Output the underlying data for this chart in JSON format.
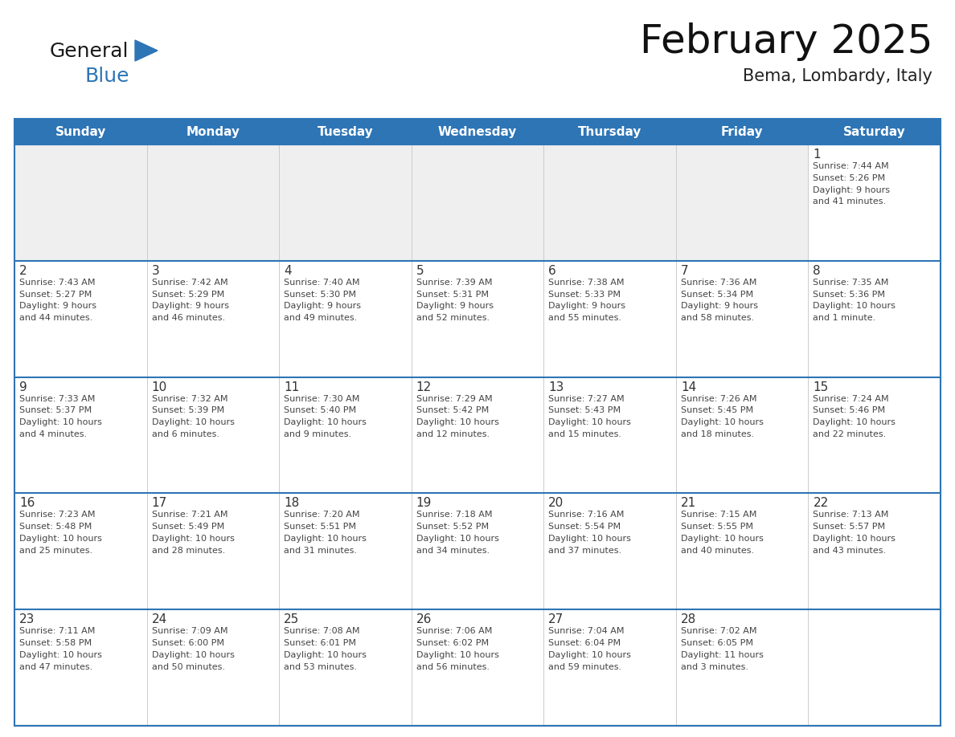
{
  "title": "February 2025",
  "subtitle": "Bema, Lombardy, Italy",
  "header_bg": "#2E75B6",
  "header_text_color": "#FFFFFF",
  "border_color": "#2E75B6",
  "row_divider_color": "#2E75B6",
  "cell_bg": "#FFFFFF",
  "empty_row_bg": "#F0F0F0",
  "text_color": "#333333",
  "days_of_week": [
    "Sunday",
    "Monday",
    "Tuesday",
    "Wednesday",
    "Thursday",
    "Friday",
    "Saturday"
  ],
  "weeks": [
    [
      {
        "day": "",
        "info": ""
      },
      {
        "day": "",
        "info": ""
      },
      {
        "day": "",
        "info": ""
      },
      {
        "day": "",
        "info": ""
      },
      {
        "day": "",
        "info": ""
      },
      {
        "day": "",
        "info": ""
      },
      {
        "day": "1",
        "info": "Sunrise: 7:44 AM\nSunset: 5:26 PM\nDaylight: 9 hours\nand 41 minutes."
      }
    ],
    [
      {
        "day": "2",
        "info": "Sunrise: 7:43 AM\nSunset: 5:27 PM\nDaylight: 9 hours\nand 44 minutes."
      },
      {
        "day": "3",
        "info": "Sunrise: 7:42 AM\nSunset: 5:29 PM\nDaylight: 9 hours\nand 46 minutes."
      },
      {
        "day": "4",
        "info": "Sunrise: 7:40 AM\nSunset: 5:30 PM\nDaylight: 9 hours\nand 49 minutes."
      },
      {
        "day": "5",
        "info": "Sunrise: 7:39 AM\nSunset: 5:31 PM\nDaylight: 9 hours\nand 52 minutes."
      },
      {
        "day": "6",
        "info": "Sunrise: 7:38 AM\nSunset: 5:33 PM\nDaylight: 9 hours\nand 55 minutes."
      },
      {
        "day": "7",
        "info": "Sunrise: 7:36 AM\nSunset: 5:34 PM\nDaylight: 9 hours\nand 58 minutes."
      },
      {
        "day": "8",
        "info": "Sunrise: 7:35 AM\nSunset: 5:36 PM\nDaylight: 10 hours\nand 1 minute."
      }
    ],
    [
      {
        "day": "9",
        "info": "Sunrise: 7:33 AM\nSunset: 5:37 PM\nDaylight: 10 hours\nand 4 minutes."
      },
      {
        "day": "10",
        "info": "Sunrise: 7:32 AM\nSunset: 5:39 PM\nDaylight: 10 hours\nand 6 minutes."
      },
      {
        "day": "11",
        "info": "Sunrise: 7:30 AM\nSunset: 5:40 PM\nDaylight: 10 hours\nand 9 minutes."
      },
      {
        "day": "12",
        "info": "Sunrise: 7:29 AM\nSunset: 5:42 PM\nDaylight: 10 hours\nand 12 minutes."
      },
      {
        "day": "13",
        "info": "Sunrise: 7:27 AM\nSunset: 5:43 PM\nDaylight: 10 hours\nand 15 minutes."
      },
      {
        "day": "14",
        "info": "Sunrise: 7:26 AM\nSunset: 5:45 PM\nDaylight: 10 hours\nand 18 minutes."
      },
      {
        "day": "15",
        "info": "Sunrise: 7:24 AM\nSunset: 5:46 PM\nDaylight: 10 hours\nand 22 minutes."
      }
    ],
    [
      {
        "day": "16",
        "info": "Sunrise: 7:23 AM\nSunset: 5:48 PM\nDaylight: 10 hours\nand 25 minutes."
      },
      {
        "day": "17",
        "info": "Sunrise: 7:21 AM\nSunset: 5:49 PM\nDaylight: 10 hours\nand 28 minutes."
      },
      {
        "day": "18",
        "info": "Sunrise: 7:20 AM\nSunset: 5:51 PM\nDaylight: 10 hours\nand 31 minutes."
      },
      {
        "day": "19",
        "info": "Sunrise: 7:18 AM\nSunset: 5:52 PM\nDaylight: 10 hours\nand 34 minutes."
      },
      {
        "day": "20",
        "info": "Sunrise: 7:16 AM\nSunset: 5:54 PM\nDaylight: 10 hours\nand 37 minutes."
      },
      {
        "day": "21",
        "info": "Sunrise: 7:15 AM\nSunset: 5:55 PM\nDaylight: 10 hours\nand 40 minutes."
      },
      {
        "day": "22",
        "info": "Sunrise: 7:13 AM\nSunset: 5:57 PM\nDaylight: 10 hours\nand 43 minutes."
      }
    ],
    [
      {
        "day": "23",
        "info": "Sunrise: 7:11 AM\nSunset: 5:58 PM\nDaylight: 10 hours\nand 47 minutes."
      },
      {
        "day": "24",
        "info": "Sunrise: 7:09 AM\nSunset: 6:00 PM\nDaylight: 10 hours\nand 50 minutes."
      },
      {
        "day": "25",
        "info": "Sunrise: 7:08 AM\nSunset: 6:01 PM\nDaylight: 10 hours\nand 53 minutes."
      },
      {
        "day": "26",
        "info": "Sunrise: 7:06 AM\nSunset: 6:02 PM\nDaylight: 10 hours\nand 56 minutes."
      },
      {
        "day": "27",
        "info": "Sunrise: 7:04 AM\nSunset: 6:04 PM\nDaylight: 10 hours\nand 59 minutes."
      },
      {
        "day": "28",
        "info": "Sunrise: 7:02 AM\nSunset: 6:05 PM\nDaylight: 11 hours\nand 3 minutes."
      },
      {
        "day": "",
        "info": ""
      }
    ]
  ],
  "logo_general_color": "#1a1a1a",
  "logo_blue_color": "#2E75B6",
  "logo_triangle_color": "#2E75B6",
  "title_fontsize": 36,
  "subtitle_fontsize": 15,
  "header_fontsize": 11,
  "day_num_fontsize": 11,
  "info_fontsize": 8
}
